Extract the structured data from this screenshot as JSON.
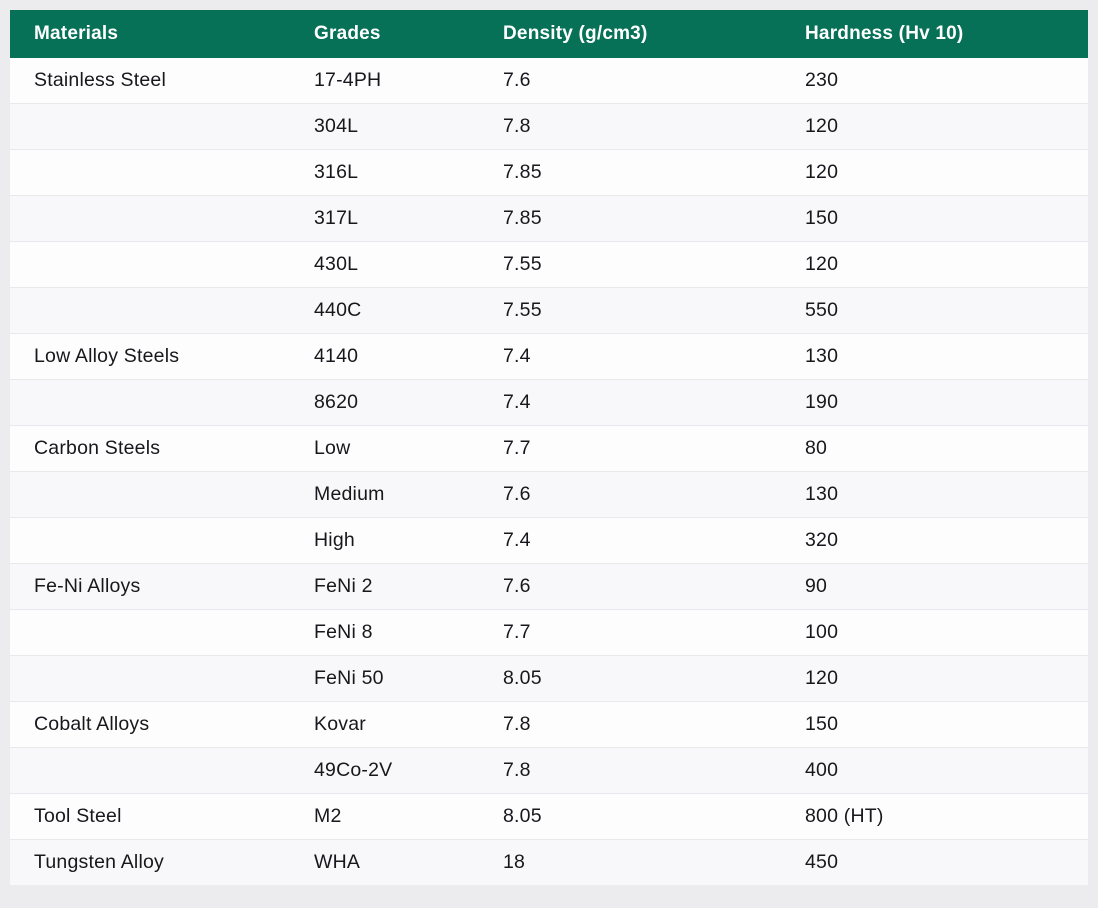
{
  "chart_data": {
    "type": "table",
    "title": "",
    "columns": [
      "Materials",
      "Grades",
      "Density (g/cm3)",
      "Hardness (Hv 10)"
    ],
    "column_keys": [
      "materials",
      "grades",
      "density",
      "hardness"
    ],
    "rows": [
      [
        "Stainless Steel",
        "17-4PH",
        "7.6",
        "230"
      ],
      [
        "",
        "304L",
        "7.8",
        "120"
      ],
      [
        "",
        "316L",
        "7.85",
        "120"
      ],
      [
        "",
        "317L",
        "7.85",
        "150"
      ],
      [
        "",
        "430L",
        "7.55",
        "120"
      ],
      [
        "",
        "440C",
        "7.55",
        "550"
      ],
      [
        "Low Alloy Steels",
        "4140",
        "7.4",
        "130"
      ],
      [
        "",
        "8620",
        "7.4",
        "190"
      ],
      [
        "Carbon Steels",
        "Low",
        "7.7",
        "80"
      ],
      [
        "",
        "Medium",
        "7.6",
        "130"
      ],
      [
        "",
        "High",
        "7.4",
        "320"
      ],
      [
        "Fe-Ni Alloys",
        "FeNi 2",
        "7.6",
        "90"
      ],
      [
        "",
        "FeNi 8",
        "7.7",
        "100"
      ],
      [
        "",
        "FeNi 50",
        "8.05",
        "120"
      ],
      [
        "Cobalt Alloys",
        "Kovar",
        "7.8",
        "150"
      ],
      [
        "",
        "49Co-2V",
        "7.8",
        "400"
      ],
      [
        "Tool Steel",
        "M2",
        "8.05",
        "800 (HT)"
      ],
      [
        "Tungsten Alloy",
        "WHA",
        "18",
        "450"
      ]
    ]
  },
  "colors": {
    "header_bg": "#077158",
    "header_text": "#ffffff",
    "row_odd_bg": "#fdfdfe",
    "row_even_bg": "#f8f7fa",
    "divider": "#e9e8ed",
    "page_bg": "#ecebee",
    "text": "#17171c"
  }
}
